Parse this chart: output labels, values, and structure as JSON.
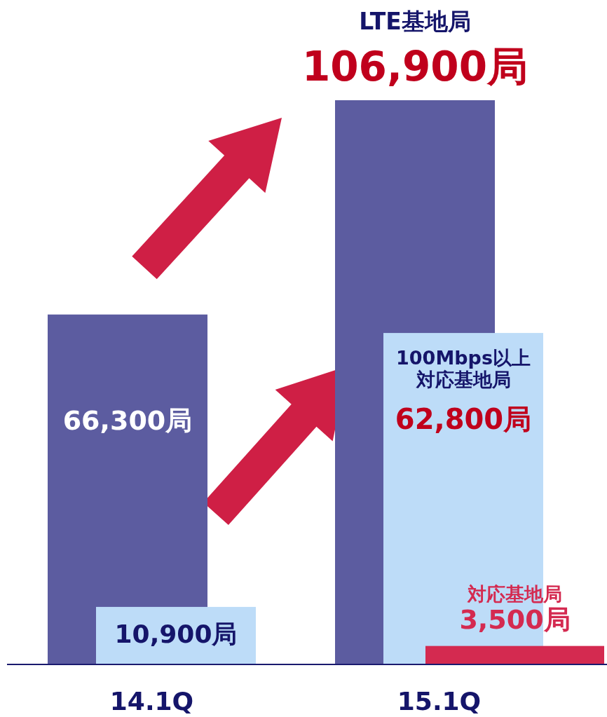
{
  "chart_data": {
    "type": "bar",
    "categories": [
      "14.1Q",
      "15.1Q"
    ],
    "series": [
      {
        "name": "LTE基地局",
        "color": "#5c5ca0",
        "values": [
          66300,
          106900
        ],
        "value_labels": [
          "66,300局",
          "106,900局"
        ]
      },
      {
        "name": "100Mbps以上対応基地局",
        "color": "#bddcf8",
        "values": [
          10900,
          62800
        ],
        "value_labels": [
          "10,900局",
          "62,800局"
        ]
      },
      {
        "name": "対応基地局",
        "color": "#d42a50",
        "values": [
          null,
          3500
        ],
        "value_labels": [
          null,
          "3,500局"
        ]
      }
    ]
  }
}
